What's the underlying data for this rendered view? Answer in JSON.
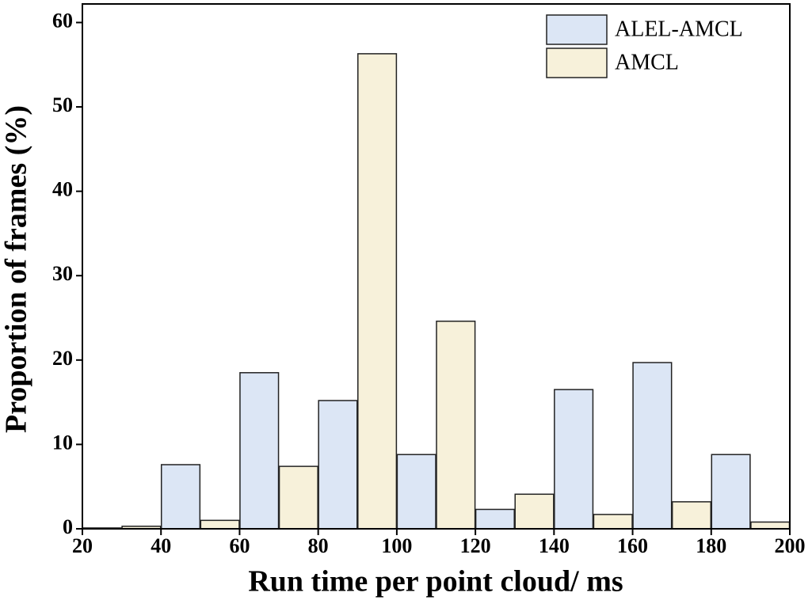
{
  "chart_data": {
    "type": "bar",
    "xlabel": "Run time per point cloud/ ms",
    "ylabel": "Proportion of frames (%)",
    "series": [
      {
        "name": "ALEL-AMCL",
        "color": "#dce6f5",
        "x": [
          25,
          45,
          65,
          85,
          105,
          125,
          145,
          165,
          185
        ],
        "values": [
          0.1,
          7.6,
          18.5,
          15.2,
          8.8,
          2.3,
          16.5,
          19.7,
          8.8
        ]
      },
      {
        "name": "AMCL",
        "color": "#f7f1da",
        "x": [
          35,
          55,
          75,
          95,
          115,
          135,
          155,
          175,
          195
        ],
        "values": [
          0.3,
          1.0,
          7.4,
          56.3,
          24.6,
          4.1,
          1.7,
          3.2,
          0.8
        ]
      }
    ],
    "xlim": [
      20,
      200
    ],
    "xticks": [
      20,
      40,
      60,
      80,
      100,
      120,
      140,
      160,
      180,
      200
    ],
    "ylim": [
      0,
      62.2
    ],
    "yticks": [
      0,
      10,
      20,
      30,
      40,
      50,
      60
    ],
    "legend": "upper right"
  }
}
